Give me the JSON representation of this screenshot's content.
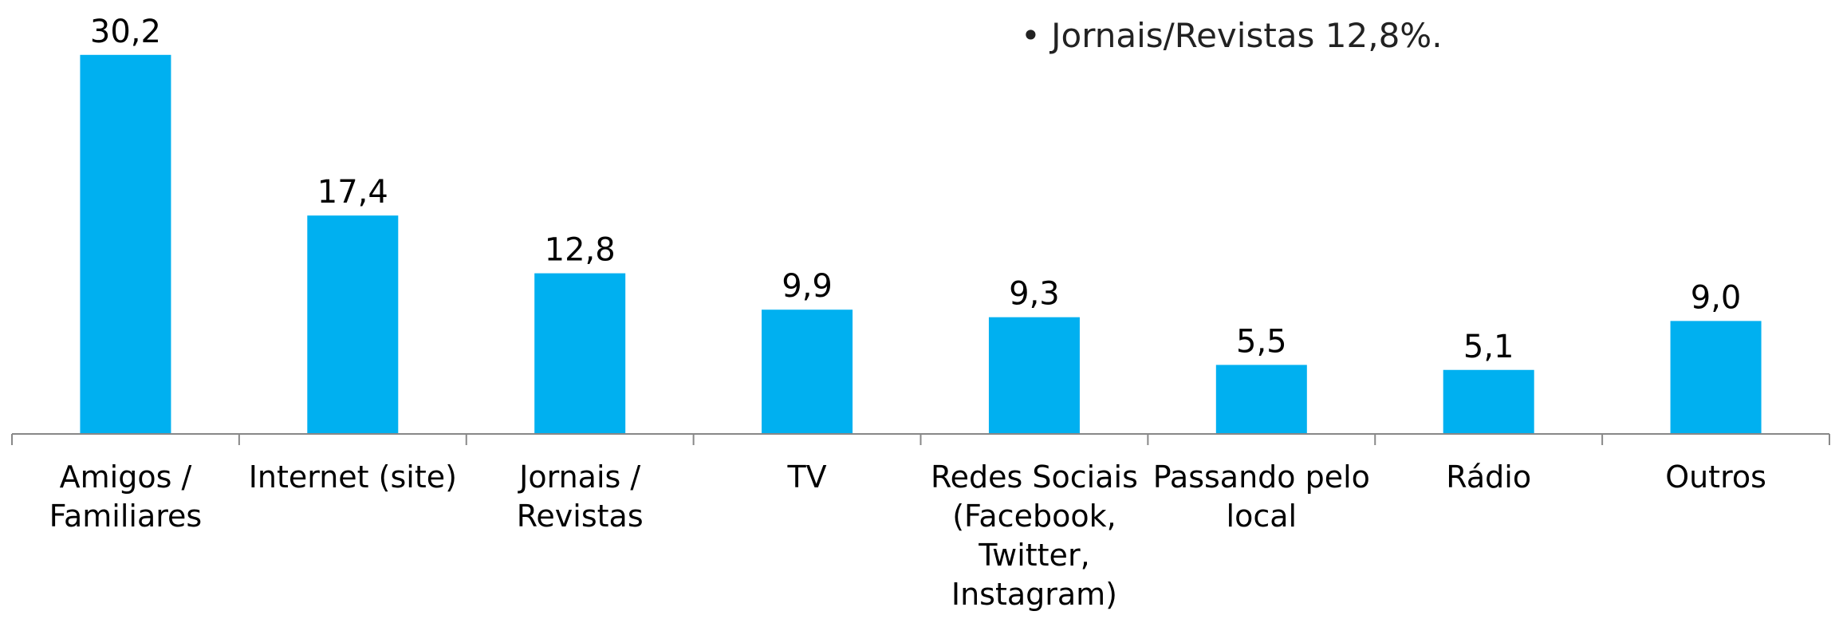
{
  "chart_data": {
    "type": "bar",
    "annotation": "• Jornais/Revistas 12,8%.",
    "categories": [
      "Amigos / Familiares",
      "Internet (site)",
      "Jornais / Revistas",
      "TV",
      "Redes Sociais (Facebook, Twitter, Instagram)",
      "Passando pelo local",
      "Rádio",
      "Outros"
    ],
    "values": [
      30.2,
      17.4,
      12.8,
      9.9,
      9.3,
      5.5,
      5.1,
      9.0
    ],
    "value_labels": [
      "30,2",
      "17,4",
      "12,8",
      "9,9",
      "9,3",
      "5,5",
      "5,1",
      "9,0"
    ],
    "color": "#00b0f0",
    "ylim": [
      0,
      34
    ]
  }
}
